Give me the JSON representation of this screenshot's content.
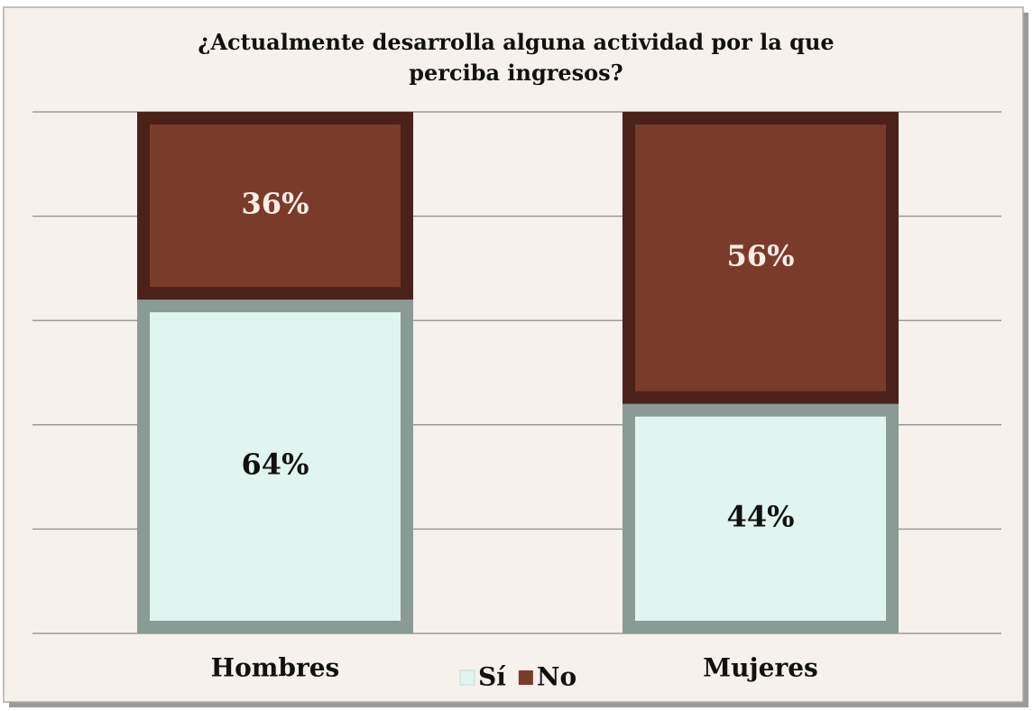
{
  "chart_data": {
    "type": "stacked_bar",
    "title": "¿Actualmente desarrolla alguna actividad por la que perciba ingresos?",
    "categories": [
      "Hombres",
      "Mujeres"
    ],
    "series": [
      {
        "name": "Sí",
        "color": "#e0f5ef",
        "values": [
          64,
          44
        ],
        "value_labels": [
          "64%",
          "44%"
        ]
      },
      {
        "name": "No",
        "color": "#7a3b2b",
        "values": [
          36,
          56
        ],
        "value_labels": [
          "36%",
          "56%"
        ]
      }
    ],
    "ylim": [
      0,
      100
    ],
    "yticks": [
      0,
      20,
      40,
      60,
      80,
      100
    ],
    "grid": true,
    "legend": "bottom"
  }
}
